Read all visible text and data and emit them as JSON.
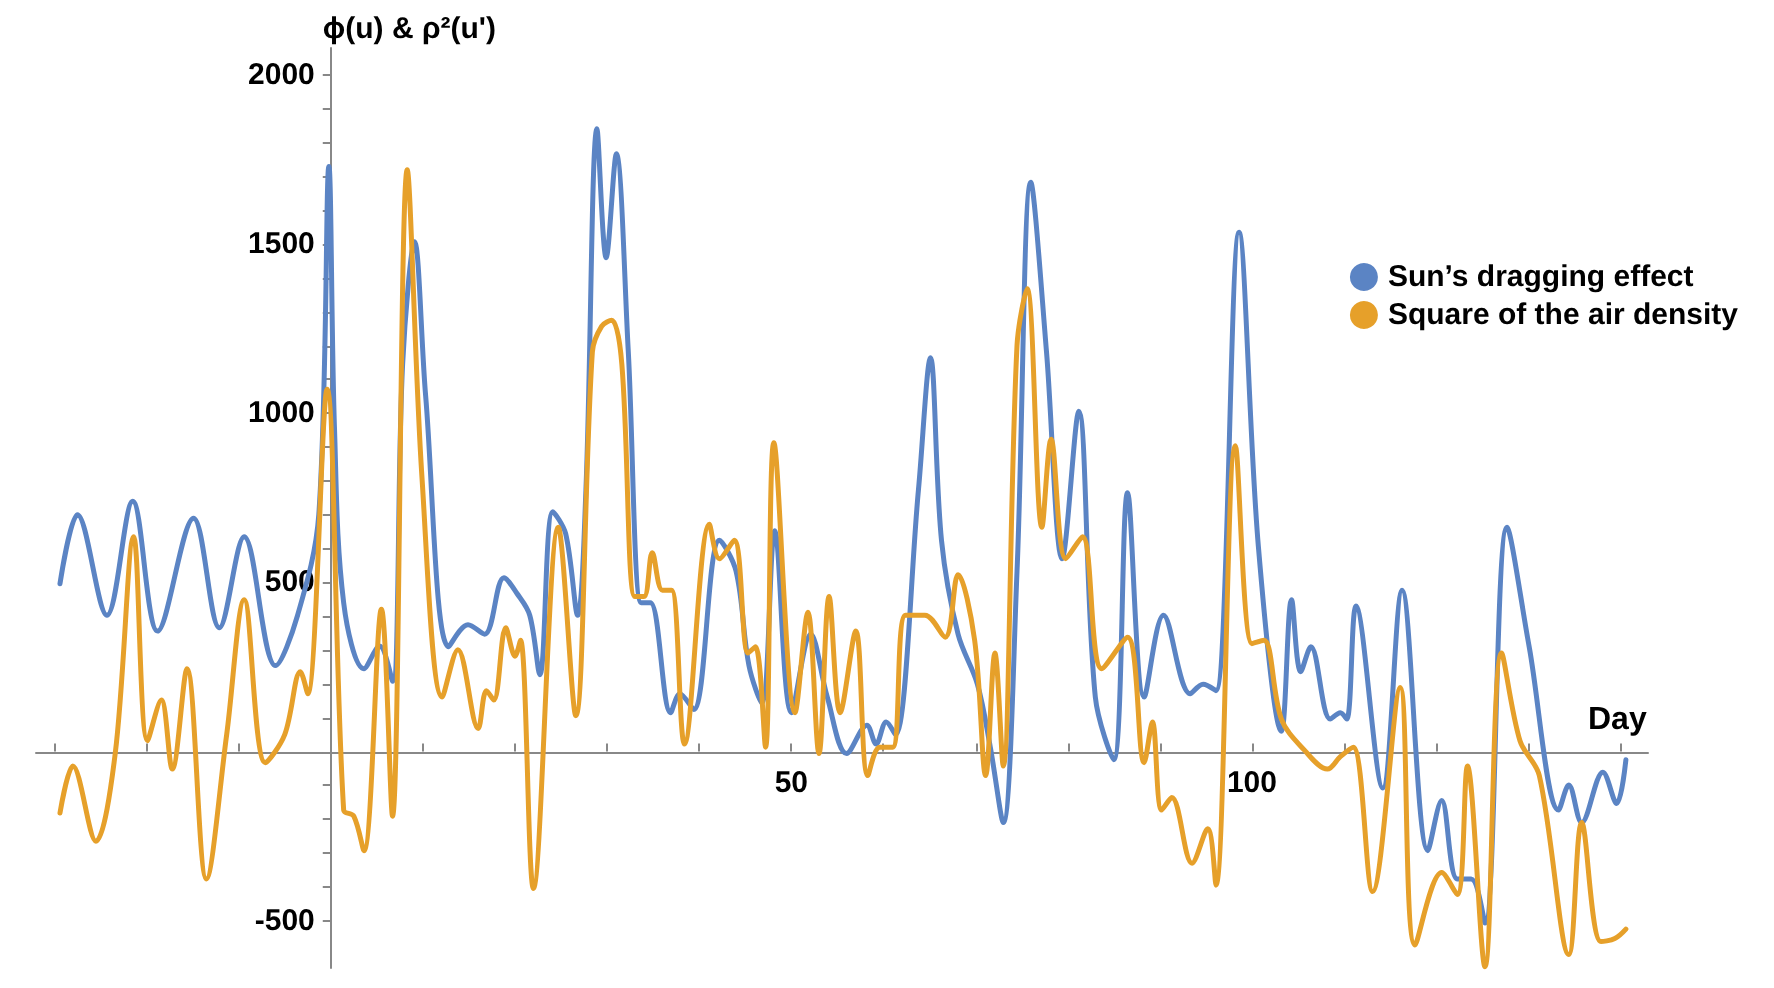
{
  "chart_data": {
    "type": "line",
    "xlabel": "Day",
    "ylabel": "ϕ(u) & ρ²(u')",
    "xlim": [
      -32,
      143
    ],
    "ylim": [
      -640,
      2080
    ],
    "xticks": [
      {
        "value": -30,
        "label": null
      },
      {
        "value": -20,
        "label": null
      },
      {
        "value": -10,
        "label": null
      },
      {
        "value": 0,
        "label": null
      },
      {
        "value": 10,
        "label": null
      },
      {
        "value": 20,
        "label": null
      },
      {
        "value": 30,
        "label": null
      },
      {
        "value": 40,
        "label": null
      },
      50,
      {
        "value": 60,
        "label": null
      },
      {
        "value": 70,
        "label": null
      },
      {
        "value": 80,
        "label": null
      },
      {
        "value": 90,
        "label": null
      },
      100,
      {
        "value": 110,
        "label": null
      },
      {
        "value": 120,
        "label": null
      },
      {
        "value": 130,
        "label": null
      },
      {
        "value": 140,
        "label": null
      }
    ],
    "yticks": [
      -500,
      {
        "value": -400,
        "label": null
      },
      {
        "value": -300,
        "label": null
      },
      {
        "value": -200,
        "label": null
      },
      {
        "value": -100,
        "label": null
      },
      {
        "value": 0,
        "label": null
      },
      {
        "value": 100,
        "label": null
      },
      {
        "value": 200,
        "label": null
      },
      {
        "value": 300,
        "label": null
      },
      {
        "value": 400,
        "label": null
      },
      500,
      {
        "value": 600,
        "label": null
      },
      {
        "value": 700,
        "label": null
      },
      {
        "value": 800,
        "label": null
      },
      {
        "value": 900,
        "label": null
      },
      1000,
      {
        "value": 1100,
        "label": null
      },
      {
        "value": 1200,
        "label": null
      },
      {
        "value": 1300,
        "label": null
      },
      {
        "value": 1400,
        "label": null
      },
      1500,
      {
        "value": 1600,
        "label": null
      },
      {
        "value": 1700,
        "label": null
      },
      {
        "value": 1800,
        "label": null
      },
      {
        "value": 1900,
        "label": null
      },
      2000
    ],
    "legend": "top right",
    "marker": "none",
    "line_style": "solid",
    "series": [
      {
        "name": "Sun’s dragging effect",
        "color": "#5b84c4",
        "x": [
          -29.4,
          -27.5,
          -24.3,
          -21.5,
          -18.8,
          -14.9,
          -12.1,
          -9.4,
          -6.0,
          -3.6,
          -1.3,
          -0.2,
          0.4,
          1.4,
          3.6,
          5.3,
          6.7,
          7.8,
          9.1,
          10.3,
          12.8,
          14.9,
          16.7,
          18.8,
          20.2,
          21.6,
          22.7,
          24.1,
          25.5,
          26.8,
          27.7,
          28.9,
          29.9,
          31.0,
          32.3,
          33.7,
          34.7,
          36.9,
          37.9,
          39.4,
          42.2,
          44.0,
          45.4,
          46.8,
          48.2,
          50.0,
          52.1,
          53.9,
          56.0,
          58.2,
          59.2,
          60.3,
          61.3,
          63.8,
          65.1,
          66.3,
          68.1,
          70.2,
          71.6,
          73.0,
          74.5,
          76.0,
          77.7,
          79.4,
          81.2,
          83.0,
          85.0,
          86.5,
          88.3,
          90.4,
          93.3,
          94.7,
          96.1,
          98.6,
          100.7,
          103.2,
          104.3,
          105.3,
          106.4,
          108.5,
          109.6,
          110.3,
          111.3,
          114.2,
          116.3,
          119.1,
          120.6,
          122.3,
          123.8,
          125.3,
          127.7,
          130.1,
          133.3,
          134.4,
          135.8,
          138.1,
          139.6,
          140.6
        ],
        "values": [
          496,
          700,
          403,
          740,
          356,
          690,
          366,
          635,
          254,
          403,
          700,
          1730,
          960,
          440,
          245,
          312,
          208,
          1145,
          1507,
          1052,
          310,
          375,
          347,
          514,
          468,
          403,
          227,
          709,
          644,
          403,
          774,
          1841,
          1460,
          1767,
          1182,
          440,
          440,
          115,
          171,
          124,
          625,
          533,
          254,
          143,
          653,
          115,
          347,
          161,
          -6,
          78,
          22,
          87,
          50,
          774,
          1164,
          625,
          347,
          199,
          13,
          -210,
          533,
          1683,
          1182,
          570,
          1006,
          161,
          -24,
          765,
          161,
          403,
          171,
          199,
          180,
          1535,
          607,
          60,
          449,
          236,
          310,
          96,
          115,
          96,
          430,
          -108,
          477,
          -293,
          -145,
          -377,
          -377,
          -507,
          663,
          310,
          -173,
          -99,
          -210,
          -61,
          -154,
          -24
        ]
      },
      {
        "name": "Square of the air density",
        "color": "#e6a02a",
        "x": [
          -29.4,
          -28.0,
          -25.5,
          -23.4,
          -21.4,
          -19.9,
          -18.4,
          -17.2,
          -15.6,
          -13.5,
          -11.3,
          -9.4,
          -7.1,
          -5.0,
          -3.3,
          -2.5,
          -0.4,
          1.4,
          2.5,
          3.6,
          5.5,
          6.7,
          8.3,
          9.9,
          12.1,
          13.8,
          16.0,
          16.9,
          17.7,
          19.0,
          20.0,
          20.6,
          22.0,
          24.7,
          26.6,
          28.4,
          29.4,
          30.5,
          31.6,
          33.0,
          34.0,
          34.9,
          36.0,
          37.0,
          38.4,
          41.1,
          42.2,
          43.8,
          45.3,
          46.1,
          47.2,
          48.1,
          50.4,
          51.8,
          53.0,
          54.1,
          55.3,
          57.0,
          58.3,
          59.6,
          61.0,
          62.4,
          64.5,
          66.7,
          68.1,
          69.9,
          71.1,
          72.1,
          73.0,
          74.5,
          75.6,
          77.2,
          78.2,
          79.8,
          81.6,
          83.7,
          86.5,
          88.3,
          89.2,
          90.2,
          91.3,
          93.5,
          95.2,
          96.1,
          98.2,
          100.0,
          101.3,
          103.2,
          105.7,
          108.2,
          109.6,
          111.0,
          113.1,
          116.1,
          117.7,
          120.6,
          122.3,
          123.4,
          125.3,
          127.1,
          129.1,
          131.2,
          134.4,
          135.8,
          137.9,
          139.4,
          140.6
        ],
        "values": [
          -182,
          -43,
          -265,
          -6,
          635,
          32,
          152,
          -52,
          245,
          -377,
          50,
          449,
          -33,
          50,
          236,
          171,
          1071,
          -173,
          -191,
          -293,
          421,
          -191,
          1720,
          811,
          161,
          301,
          68,
          180,
          152,
          366,
          282,
          329,
          -405,
          663,
          106,
          1182,
          1257,
          1275,
          1145,
          458,
          458,
          588,
          477,
          477,
          22,
          672,
          570,
          625,
          291,
          310,
          13,
          913,
          115,
          412,
          -6,
          458,
          115,
          356,
          -71,
          13,
          13,
          403,
          403,
          338,
          523,
          329,
          -71,
          291,
          -43,
          1201,
          1368,
          663,
          923,
          570,
          635,
          245,
          338,
          -33,
          87,
          -173,
          -136,
          -330,
          -228,
          -395,
          904,
          319,
          329,
          96,
          4,
          -52,
          -15,
          13,
          -414,
          189,
          -572,
          -358,
          -423,
          -43,
          -636,
          291,
          32,
          -71,
          -600,
          -210,
          -562,
          -553,
          -525
        ]
      }
    ]
  }
}
